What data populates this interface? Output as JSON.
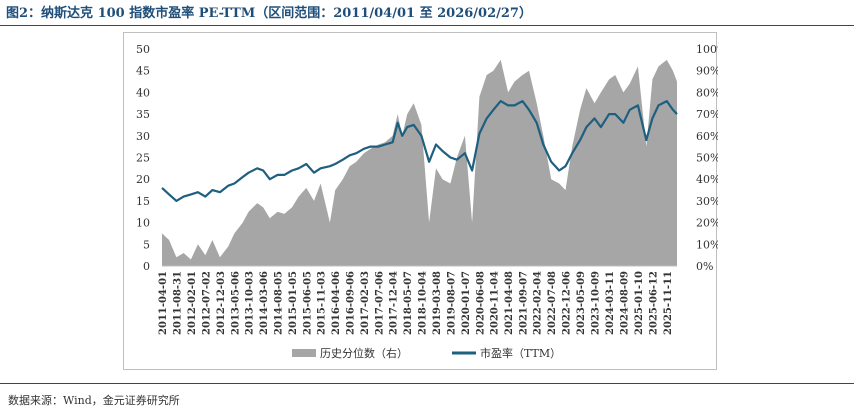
{
  "figure": {
    "title": "图2：纳斯达克 100 指数市盈率 PE-TTM（区间范围：2011/04/01 至 2026/02/27）",
    "source": "数据来源：Wind，金元证券研究所"
  },
  "colors": {
    "pe_line": "#1f5f7f",
    "percentile_area": "#a6a6a6",
    "title": "#1f4e79"
  },
  "chart_data": {
    "type": "area",
    "title": "",
    "xlabel": "",
    "ylabel": "",
    "ylim": [
      0,
      50
    ],
    "y2lim": [
      0,
      1
    ],
    "yticks": [
      "0",
      "5",
      "10",
      "15",
      "20",
      "25",
      "30",
      "35",
      "40",
      "45",
      "50"
    ],
    "y2ticks": [
      "0%",
      "10%",
      "20%",
      "30%",
      "40%",
      "50%",
      "60%",
      "70%",
      "80%",
      "90%",
      "100%"
    ],
    "xticks": [
      "2011-04-01",
      "2011-08-31",
      "2012-02-01",
      "2012-07-02",
      "2012-12-03",
      "2013-05-06",
      "2013-10-03",
      "2014-03-06",
      "2014-08-05",
      "2015-01-05",
      "2015-06-05",
      "2015-11-03",
      "2016-04-06",
      "2016-09-06",
      "2017-02-03",
      "2017-07-06",
      "2017-12-04",
      "2018-05-07",
      "2018-10-04",
      "2019-03-08",
      "2019-08-07",
      "2020-01-07",
      "2020-06-08",
      "2020-11-04",
      "2021-04-08",
      "2021-09-07",
      "2022-02-04",
      "2022-07-08",
      "2022-12-06",
      "2023-05-09",
      "2023-10-09",
      "2024-03-11",
      "2024-08-09",
      "2025-01-10",
      "2025-06-12",
      "2025-11-11"
    ],
    "legend_position": "bottom",
    "grid": false,
    "series": [
      {
        "name": "历史分位数（右）",
        "type": "area",
        "axis": "right",
        "x": [
          "2011-04-01",
          "2011-06-15",
          "2011-08-31",
          "2011-11-15",
          "2012-02-01",
          "2012-04-15",
          "2012-07-02",
          "2012-09-15",
          "2012-12-03",
          "2013-03-01",
          "2013-05-06",
          "2013-08-01",
          "2013-10-03",
          "2014-01-02",
          "2014-03-06",
          "2014-05-15",
          "2014-08-05",
          "2014-10-15",
          "2015-01-05",
          "2015-03-15",
          "2015-06-05",
          "2015-08-25",
          "2015-11-03",
          "2016-02-10",
          "2016-04-06",
          "2016-06-25",
          "2016-09-06",
          "2016-11-15",
          "2017-02-03",
          "2017-04-15",
          "2017-07-06",
          "2017-09-15",
          "2017-12-04",
          "2018-01-26",
          "2018-03-15",
          "2018-05-07",
          "2018-07-15",
          "2018-10-04",
          "2018-12-24",
          "2019-03-08",
          "2019-05-15",
          "2019-08-07",
          "2019-10-15",
          "2020-01-07",
          "2020-03-23",
          "2020-06-08",
          "2020-08-25",
          "2020-11-04",
          "2021-01-20",
          "2021-04-08",
          "2021-06-15",
          "2021-09-07",
          "2021-11-15",
          "2022-02-04",
          "2022-04-15",
          "2022-07-08",
          "2022-09-30",
          "2022-12-06",
          "2023-02-15",
          "2023-05-09",
          "2023-07-15",
          "2023-10-09",
          "2023-12-15",
          "2024-03-11",
          "2024-05-15",
          "2024-08-09",
          "2024-10-15",
          "2025-01-10",
          "2025-04-08",
          "2025-06-12",
          "2025-08-15",
          "2025-11-11",
          "2026-01-15",
          "2026-02-27"
        ],
        "values": [
          0.15,
          0.12,
          0.04,
          0.06,
          0.03,
          0.1,
          0.05,
          0.12,
          0.04,
          0.09,
          0.15,
          0.2,
          0.25,
          0.29,
          0.27,
          0.22,
          0.25,
          0.24,
          0.27,
          0.32,
          0.36,
          0.3,
          0.38,
          0.2,
          0.35,
          0.4,
          0.46,
          0.48,
          0.52,
          0.54,
          0.56,
          0.57,
          0.6,
          0.7,
          0.6,
          0.7,
          0.75,
          0.65,
          0.2,
          0.45,
          0.4,
          0.38,
          0.5,
          0.6,
          0.2,
          0.78,
          0.88,
          0.9,
          0.95,
          0.8,
          0.85,
          0.88,
          0.9,
          0.75,
          0.6,
          0.4,
          0.38,
          0.35,
          0.55,
          0.72,
          0.82,
          0.75,
          0.8,
          0.86,
          0.88,
          0.8,
          0.84,
          0.92,
          0.55,
          0.86,
          0.92,
          0.95,
          0.9,
          0.85
        ]
      },
      {
        "name": "市盈率（TTM）",
        "type": "line",
        "axis": "left",
        "x": [
          "2011-04-01",
          "2011-06-15",
          "2011-08-31",
          "2011-11-15",
          "2012-02-01",
          "2012-04-15",
          "2012-07-02",
          "2012-09-15",
          "2012-12-03",
          "2013-03-01",
          "2013-05-06",
          "2013-08-01",
          "2013-10-03",
          "2014-01-02",
          "2014-03-06",
          "2014-05-15",
          "2014-08-05",
          "2014-10-15",
          "2015-01-05",
          "2015-03-15",
          "2015-06-05",
          "2015-08-25",
          "2015-11-03",
          "2016-02-10",
          "2016-04-06",
          "2016-06-25",
          "2016-09-06",
          "2016-11-15",
          "2017-02-03",
          "2017-04-15",
          "2017-07-06",
          "2017-09-15",
          "2017-12-04",
          "2018-01-26",
          "2018-03-15",
          "2018-05-07",
          "2018-07-15",
          "2018-10-04",
          "2018-12-24",
          "2019-03-08",
          "2019-05-15",
          "2019-08-07",
          "2019-10-15",
          "2020-01-07",
          "2020-03-23",
          "2020-06-08",
          "2020-08-25",
          "2020-11-04",
          "2021-01-20",
          "2021-04-08",
          "2021-06-15",
          "2021-09-07",
          "2021-11-15",
          "2022-02-04",
          "2022-04-15",
          "2022-07-08",
          "2022-09-30",
          "2022-12-06",
          "2023-02-15",
          "2023-05-09",
          "2023-07-15",
          "2023-10-09",
          "2023-12-15",
          "2024-03-11",
          "2024-05-15",
          "2024-08-09",
          "2024-10-15",
          "2025-01-10",
          "2025-04-08",
          "2025-06-12",
          "2025-08-15",
          "2025-11-11",
          "2026-01-15",
          "2026-02-27"
        ],
        "values": [
          18,
          16.5,
          15,
          16,
          16.5,
          17,
          16,
          17.5,
          17,
          18.5,
          19,
          20.5,
          21.5,
          22.5,
          22,
          20,
          21,
          21,
          22,
          22.5,
          23.5,
          21.5,
          22.5,
          23,
          23.5,
          24.5,
          25.5,
          26,
          27,
          27.5,
          27.5,
          28,
          28.5,
          33,
          30,
          32,
          32.5,
          30,
          24,
          28,
          26.5,
          25,
          24.5,
          26,
          22,
          30.5,
          34,
          36,
          38,
          37,
          37,
          38,
          36,
          33,
          28,
          24,
          22,
          23,
          26,
          29,
          32,
          34,
          32,
          35,
          35,
          33,
          36,
          37,
          29,
          34,
          37,
          38,
          36,
          35
        ]
      }
    ]
  }
}
